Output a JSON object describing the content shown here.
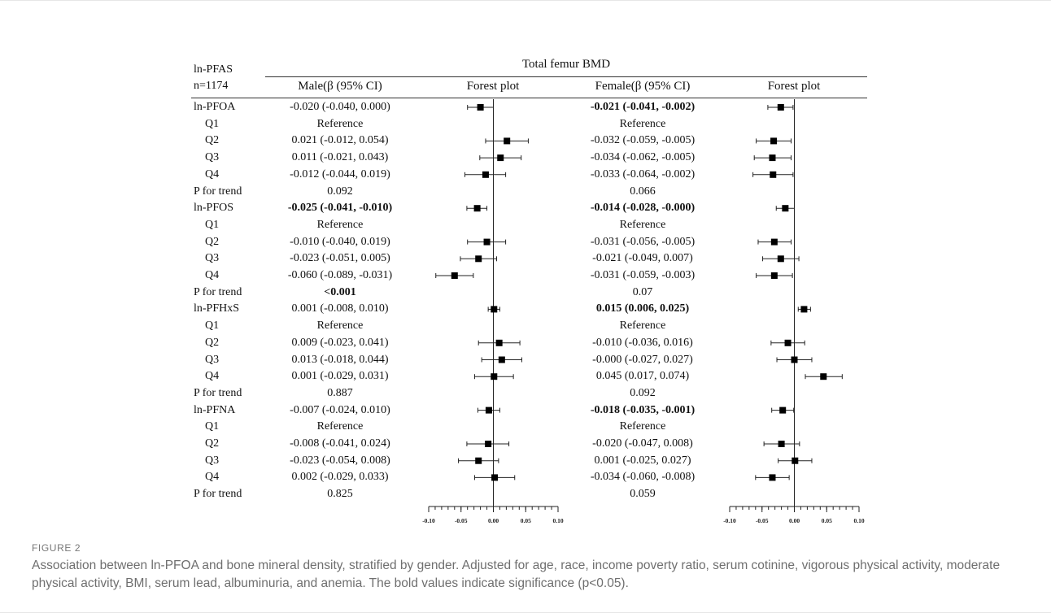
{
  "table": {
    "corner_line1": "ln-PFAS",
    "corner_line2": "n=1174",
    "span_header": "Total femur BMD",
    "col_male": "Male(β (95% CI)",
    "col_forest_male": "Forest plot",
    "col_female": "Female(β (95% CI)",
    "col_forest_female": "Forest plot",
    "rows": [
      {
        "label": "ln-PFOA",
        "sub": false,
        "male": {
          "text": "-0.020 (-0.040, 0.000)",
          "bold": false,
          "est": -0.02,
          "lo": -0.04,
          "hi": 0.0
        },
        "female": {
          "text": "-0.021 (-0.041, -0.002)",
          "bold": true,
          "est": -0.021,
          "lo": -0.041,
          "hi": -0.002
        }
      },
      {
        "label": "Q1",
        "sub": true,
        "male": {
          "text": "Reference",
          "bold": false
        },
        "female": {
          "text": "Reference",
          "bold": false
        }
      },
      {
        "label": "Q2",
        "sub": true,
        "male": {
          "text": "0.021 (-0.012, 0.054)",
          "bold": false,
          "est": 0.021,
          "lo": -0.012,
          "hi": 0.054
        },
        "female": {
          "text": "-0.032 (-0.059, -0.005)",
          "bold": false,
          "est": -0.032,
          "lo": -0.059,
          "hi": -0.005
        }
      },
      {
        "label": "Q3",
        "sub": true,
        "male": {
          "text": "0.011 (-0.021, 0.043)",
          "bold": false,
          "est": 0.011,
          "lo": -0.021,
          "hi": 0.043
        },
        "female": {
          "text": "-0.034 (-0.062, -0.005)",
          "bold": false,
          "est": -0.034,
          "lo": -0.062,
          "hi": -0.005
        }
      },
      {
        "label": "Q4",
        "sub": true,
        "male": {
          "text": "-0.012 (-0.044, 0.019)",
          "bold": false,
          "est": -0.012,
          "lo": -0.044,
          "hi": 0.019
        },
        "female": {
          "text": "-0.033 (-0.064, -0.002)",
          "bold": false,
          "est": -0.033,
          "lo": -0.064,
          "hi": -0.002
        }
      },
      {
        "label": "P for trend",
        "sub": false,
        "male": {
          "text": "0.092",
          "bold": false
        },
        "female": {
          "text": "0.066",
          "bold": false
        }
      },
      {
        "label": "ln-PFOS",
        "sub": false,
        "male": {
          "text": "-0.025 (-0.041, -0.010)",
          "bold": true,
          "est": -0.025,
          "lo": -0.041,
          "hi": -0.01
        },
        "female": {
          "text": "-0.014 (-0.028, -0.000)",
          "bold": true,
          "est": -0.014,
          "lo": -0.028,
          "hi": 0.0
        }
      },
      {
        "label": "Q1",
        "sub": true,
        "male": {
          "text": "Reference",
          "bold": false
        },
        "female": {
          "text": "Reference",
          "bold": false
        }
      },
      {
        "label": "Q2",
        "sub": true,
        "male": {
          "text": "-0.010 (-0.040, 0.019)",
          "bold": false,
          "est": -0.01,
          "lo": -0.04,
          "hi": 0.019
        },
        "female": {
          "text": "-0.031 (-0.056, -0.005)",
          "bold": false,
          "est": -0.031,
          "lo": -0.056,
          "hi": -0.005
        }
      },
      {
        "label": "Q3",
        "sub": true,
        "male": {
          "text": "-0.023 (-0.051, 0.005)",
          "bold": false,
          "est": -0.023,
          "lo": -0.051,
          "hi": 0.005
        },
        "female": {
          "text": "-0.021 (-0.049, 0.007)",
          "bold": false,
          "est": -0.021,
          "lo": -0.049,
          "hi": 0.007
        }
      },
      {
        "label": "Q4",
        "sub": true,
        "male": {
          "text": "-0.060 (-0.089, -0.031)",
          "bold": false,
          "est": -0.06,
          "lo": -0.089,
          "hi": -0.031
        },
        "female": {
          "text": "-0.031 (-0.059, -0.003)",
          "bold": false,
          "est": -0.031,
          "lo": -0.059,
          "hi": -0.003
        }
      },
      {
        "label": "P for trend",
        "sub": false,
        "male": {
          "text": "<0.001",
          "bold": true
        },
        "female": {
          "text": "0.07",
          "bold": false
        }
      },
      {
        "label": "ln-PFHxS",
        "sub": false,
        "male": {
          "text": "0.001 (-0.008, 0.010)",
          "bold": false,
          "est": 0.001,
          "lo": -0.008,
          "hi": 0.01
        },
        "female": {
          "text": "0.015 (0.006, 0.025)",
          "bold": true,
          "est": 0.015,
          "lo": 0.006,
          "hi": 0.025
        }
      },
      {
        "label": "Q1",
        "sub": true,
        "male": {
          "text": "Reference",
          "bold": false
        },
        "female": {
          "text": "Reference",
          "bold": false
        }
      },
      {
        "label": "Q2",
        "sub": true,
        "male": {
          "text": "0.009 (-0.023, 0.041)",
          "bold": false,
          "est": 0.009,
          "lo": -0.023,
          "hi": 0.041
        },
        "female": {
          "text": "-0.010 (-0.036, 0.016)",
          "bold": false,
          "est": -0.01,
          "lo": -0.036,
          "hi": 0.016
        }
      },
      {
        "label": "Q3",
        "sub": true,
        "male": {
          "text": "0.013 (-0.018, 0.044)",
          "bold": false,
          "est": 0.013,
          "lo": -0.018,
          "hi": 0.044
        },
        "female": {
          "text": "-0.000 (-0.027, 0.027)",
          "bold": false,
          "est": 0.0,
          "lo": -0.027,
          "hi": 0.027
        }
      },
      {
        "label": "Q4",
        "sub": true,
        "male": {
          "text": "0.001 (-0.029, 0.031)",
          "bold": false,
          "est": 0.001,
          "lo": -0.029,
          "hi": 0.031
        },
        "female": {
          "text": "0.045 (0.017, 0.074)",
          "bold": false,
          "est": 0.045,
          "lo": 0.017,
          "hi": 0.074
        }
      },
      {
        "label": "P for trend",
        "sub": false,
        "male": {
          "text": "0.887",
          "bold": false
        },
        "female": {
          "text": "0.092",
          "bold": false
        }
      },
      {
        "label": "ln-PFNA",
        "sub": false,
        "male": {
          "text": "-0.007 (-0.024, 0.010)",
          "bold": false,
          "est": -0.007,
          "lo": -0.024,
          "hi": 0.01
        },
        "female": {
          "text": "-0.018 (-0.035, -0.001)",
          "bold": true,
          "est": -0.018,
          "lo": -0.035,
          "hi": -0.001
        }
      },
      {
        "label": "Q1",
        "sub": true,
        "male": {
          "text": "Reference",
          "bold": false
        },
        "female": {
          "text": "Reference",
          "bold": false
        }
      },
      {
        "label": "Q2",
        "sub": true,
        "male": {
          "text": "-0.008 (-0.041, 0.024)",
          "bold": false,
          "est": -0.008,
          "lo": -0.041,
          "hi": 0.024
        },
        "female": {
          "text": "-0.020 (-0.047, 0.008)",
          "bold": false,
          "est": -0.02,
          "lo": -0.047,
          "hi": 0.008
        }
      },
      {
        "label": "Q3",
        "sub": true,
        "male": {
          "text": "-0.023 (-0.054, 0.008)",
          "bold": false,
          "est": -0.023,
          "lo": -0.054,
          "hi": 0.008
        },
        "female": {
          "text": "0.001 (-0.025, 0.027)",
          "bold": false,
          "est": 0.001,
          "lo": -0.025,
          "hi": 0.027
        }
      },
      {
        "label": "Q4",
        "sub": true,
        "male": {
          "text": "0.002 (-0.029, 0.033)",
          "bold": false,
          "est": 0.002,
          "lo": -0.029,
          "hi": 0.033
        },
        "female": {
          "text": "-0.034 (-0.060, -0.008)",
          "bold": false,
          "est": -0.034,
          "lo": -0.06,
          "hi": -0.008
        }
      },
      {
        "label": "P for trend",
        "sub": false,
        "male": {
          "text": "0.825",
          "bold": false
        },
        "female": {
          "text": "0.059",
          "bold": false
        }
      }
    ]
  },
  "axis": {
    "xlim": [
      -0.1,
      0.1
    ],
    "tick_labels": [
      "-0.10",
      "-0.05",
      "0.00",
      "0.05",
      "0.10"
    ],
    "tick_values": [
      -0.1,
      -0.05,
      0.0,
      0.05,
      0.1
    ],
    "minor_step": 0.01
  },
  "caption": {
    "label": "FIGURE 2",
    "text": "Association between ln-PFOA and bone mineral density, stratified by gender. Adjusted for age, race, income poverty ratio, serum cotinine, vigorous physical activity, moderate physical activity, BMI, serum lead, albuminuria, and anemia. The bold values indicate significance (p<0.05)."
  },
  "colors": {
    "ink": "#111111",
    "caption": "#6f6f6f"
  }
}
